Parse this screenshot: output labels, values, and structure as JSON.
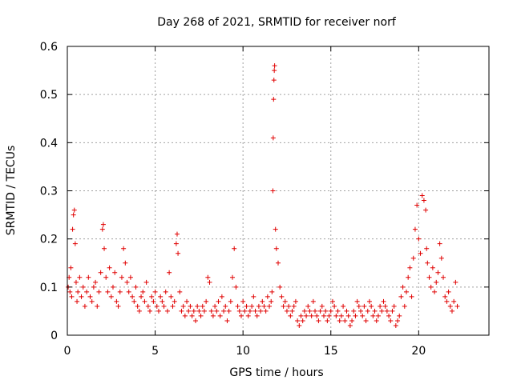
{
  "chart_data": {
    "type": "scatter",
    "title": "Day 268 of 2021, SRMTID for receiver norf",
    "xlabel": "GPS time / hours",
    "ylabel": "SRMTID / TECUs",
    "xlim": [
      0,
      24
    ],
    "ylim": [
      0,
      0.6
    ],
    "xticks": [
      0,
      5,
      10,
      15,
      20
    ],
    "xtick_labels": [
      "0",
      "5",
      "10",
      "15",
      "20"
    ],
    "yticks": [
      0,
      0.1,
      0.2,
      0.3,
      0.4,
      0.5,
      0.6
    ],
    "ytick_labels": [
      "0",
      "0.1",
      "0.2",
      "0.3",
      "0.4",
      "0.5",
      "0.6"
    ],
    "grid": true,
    "marker": "plus",
    "series_color": "#e00000",
    "series": [
      {
        "name": "SRMTID",
        "x": [
          0.05,
          0.1,
          0.15,
          0.2,
          0.25,
          0.3,
          0.35,
          0.4,
          0.45,
          0.5,
          0.55,
          0.6,
          0.7,
          0.8,
          0.9,
          1.0,
          1.1,
          1.2,
          1.3,
          1.4,
          1.5,
          1.6,
          1.7,
          1.8,
          1.9,
          2.0,
          2.05,
          2.1,
          2.2,
          2.3,
          2.4,
          2.5,
          2.6,
          2.7,
          2.8,
          2.9,
          3.0,
          3.1,
          3.2,
          3.3,
          3.4,
          3.5,
          3.6,
          3.7,
          3.8,
          3.9,
          4.0,
          4.1,
          4.2,
          4.3,
          4.4,
          4.5,
          4.6,
          4.7,
          4.8,
          4.9,
          5.0,
          5.1,
          5.2,
          5.3,
          5.4,
          5.5,
          5.6,
          5.7,
          5.8,
          5.9,
          6.0,
          6.1,
          6.2,
          6.25,
          6.3,
          6.4,
          6.5,
          6.6,
          6.7,
          6.8,
          6.9,
          7.0,
          7.1,
          7.2,
          7.3,
          7.4,
          7.5,
          7.6,
          7.7,
          7.8,
          7.9,
          8.0,
          8.1,
          8.2,
          8.3,
          8.4,
          8.5,
          8.6,
          8.7,
          8.8,
          8.9,
          9.0,
          9.1,
          9.2,
          9.3,
          9.4,
          9.5,
          9.6,
          9.7,
          9.8,
          9.9,
          10.0,
          10.1,
          10.2,
          10.3,
          10.4,
          10.5,
          10.6,
          10.7,
          10.8,
          10.9,
          11.0,
          11.1,
          11.2,
          11.3,
          11.4,
          11.5,
          11.6,
          11.65,
          11.7,
          11.72,
          11.74,
          11.76,
          11.78,
          11.8,
          11.85,
          11.9,
          12.0,
          12.1,
          12.2,
          12.3,
          12.4,
          12.5,
          12.6,
          12.7,
          12.8,
          12.9,
          13.0,
          13.1,
          13.2,
          13.3,
          13.4,
          13.5,
          13.6,
          13.7,
          13.8,
          13.9,
          14.0,
          14.1,
          14.2,
          14.3,
          14.4,
          14.5,
          14.6,
          14.7,
          14.8,
          14.9,
          15.0,
          15.1,
          15.2,
          15.3,
          15.4,
          15.5,
          15.6,
          15.7,
          15.8,
          15.9,
          16.0,
          16.1,
          16.2,
          16.3,
          16.4,
          16.5,
          16.6,
          16.7,
          16.8,
          16.9,
          17.0,
          17.1,
          17.2,
          17.3,
          17.4,
          17.5,
          17.6,
          17.7,
          17.8,
          17.9,
          18.0,
          18.1,
          18.2,
          18.3,
          18.4,
          18.5,
          18.6,
          18.7,
          18.8,
          18.9,
          19.0,
          19.1,
          19.2,
          19.3,
          19.4,
          19.5,
          19.6,
          19.7,
          19.8,
          19.9,
          20.0,
          20.1,
          20.2,
          20.3,
          20.4,
          20.45,
          20.5,
          20.6,
          20.7,
          20.8,
          20.9,
          21.0,
          21.1,
          21.2,
          21.3,
          21.4,
          21.5,
          21.6,
          21.7,
          21.8,
          21.9,
          22.0,
          22.1,
          22.2
        ],
        "y": [
          0.1,
          0.12,
          0.09,
          0.14,
          0.08,
          0.22,
          0.25,
          0.26,
          0.19,
          0.11,
          0.07,
          0.09,
          0.12,
          0.08,
          0.1,
          0.06,
          0.09,
          0.12,
          0.08,
          0.07,
          0.1,
          0.11,
          0.06,
          0.09,
          0.13,
          0.22,
          0.23,
          0.18,
          0.12,
          0.09,
          0.14,
          0.08,
          0.1,
          0.13,
          0.07,
          0.06,
          0.09,
          0.12,
          0.18,
          0.15,
          0.11,
          0.09,
          0.12,
          0.08,
          0.07,
          0.1,
          0.06,
          0.05,
          0.08,
          0.09,
          0.07,
          0.11,
          0.06,
          0.05,
          0.08,
          0.07,
          0.09,
          0.06,
          0.05,
          0.08,
          0.07,
          0.06,
          0.09,
          0.05,
          0.13,
          0.08,
          0.06,
          0.07,
          0.19,
          0.21,
          0.17,
          0.09,
          0.05,
          0.06,
          0.04,
          0.07,
          0.05,
          0.06,
          0.04,
          0.05,
          0.03,
          0.06,
          0.05,
          0.04,
          0.06,
          0.05,
          0.07,
          0.12,
          0.11,
          0.05,
          0.04,
          0.06,
          0.05,
          0.07,
          0.04,
          0.08,
          0.05,
          0.06,
          0.03,
          0.05,
          0.07,
          0.12,
          0.18,
          0.1,
          0.06,
          0.05,
          0.04,
          0.07,
          0.05,
          0.06,
          0.04,
          0.05,
          0.06,
          0.08,
          0.05,
          0.04,
          0.06,
          0.05,
          0.07,
          0.06,
          0.05,
          0.08,
          0.06,
          0.07,
          0.09,
          0.3,
          0.41,
          0.49,
          0.53,
          0.55,
          0.56,
          0.22,
          0.18,
          0.15,
          0.1,
          0.08,
          0.06,
          0.07,
          0.05,
          0.06,
          0.04,
          0.05,
          0.06,
          0.07,
          0.03,
          0.02,
          0.04,
          0.03,
          0.05,
          0.04,
          0.06,
          0.05,
          0.04,
          0.07,
          0.05,
          0.04,
          0.03,
          0.05,
          0.06,
          0.04,
          0.05,
          0.03,
          0.04,
          0.05,
          0.07,
          0.06,
          0.04,
          0.05,
          0.03,
          0.04,
          0.06,
          0.03,
          0.05,
          0.04,
          0.02,
          0.03,
          0.05,
          0.04,
          0.07,
          0.06,
          0.05,
          0.04,
          0.06,
          0.03,
          0.05,
          0.07,
          0.06,
          0.04,
          0.05,
          0.03,
          0.04,
          0.06,
          0.05,
          0.07,
          0.06,
          0.05,
          0.04,
          0.03,
          0.05,
          0.06,
          0.02,
          0.03,
          0.04,
          0.08,
          0.1,
          0.06,
          0.09,
          0.12,
          0.14,
          0.08,
          0.16,
          0.22,
          0.27,
          0.2,
          0.17,
          0.29,
          0.28,
          0.26,
          0.18,
          0.15,
          0.12,
          0.1,
          0.14,
          0.09,
          0.11,
          0.13,
          0.19,
          0.16,
          0.12,
          0.08,
          0.07,
          0.09,
          0.06,
          0.05,
          0.07,
          0.11,
          0.06
        ]
      }
    ]
  }
}
